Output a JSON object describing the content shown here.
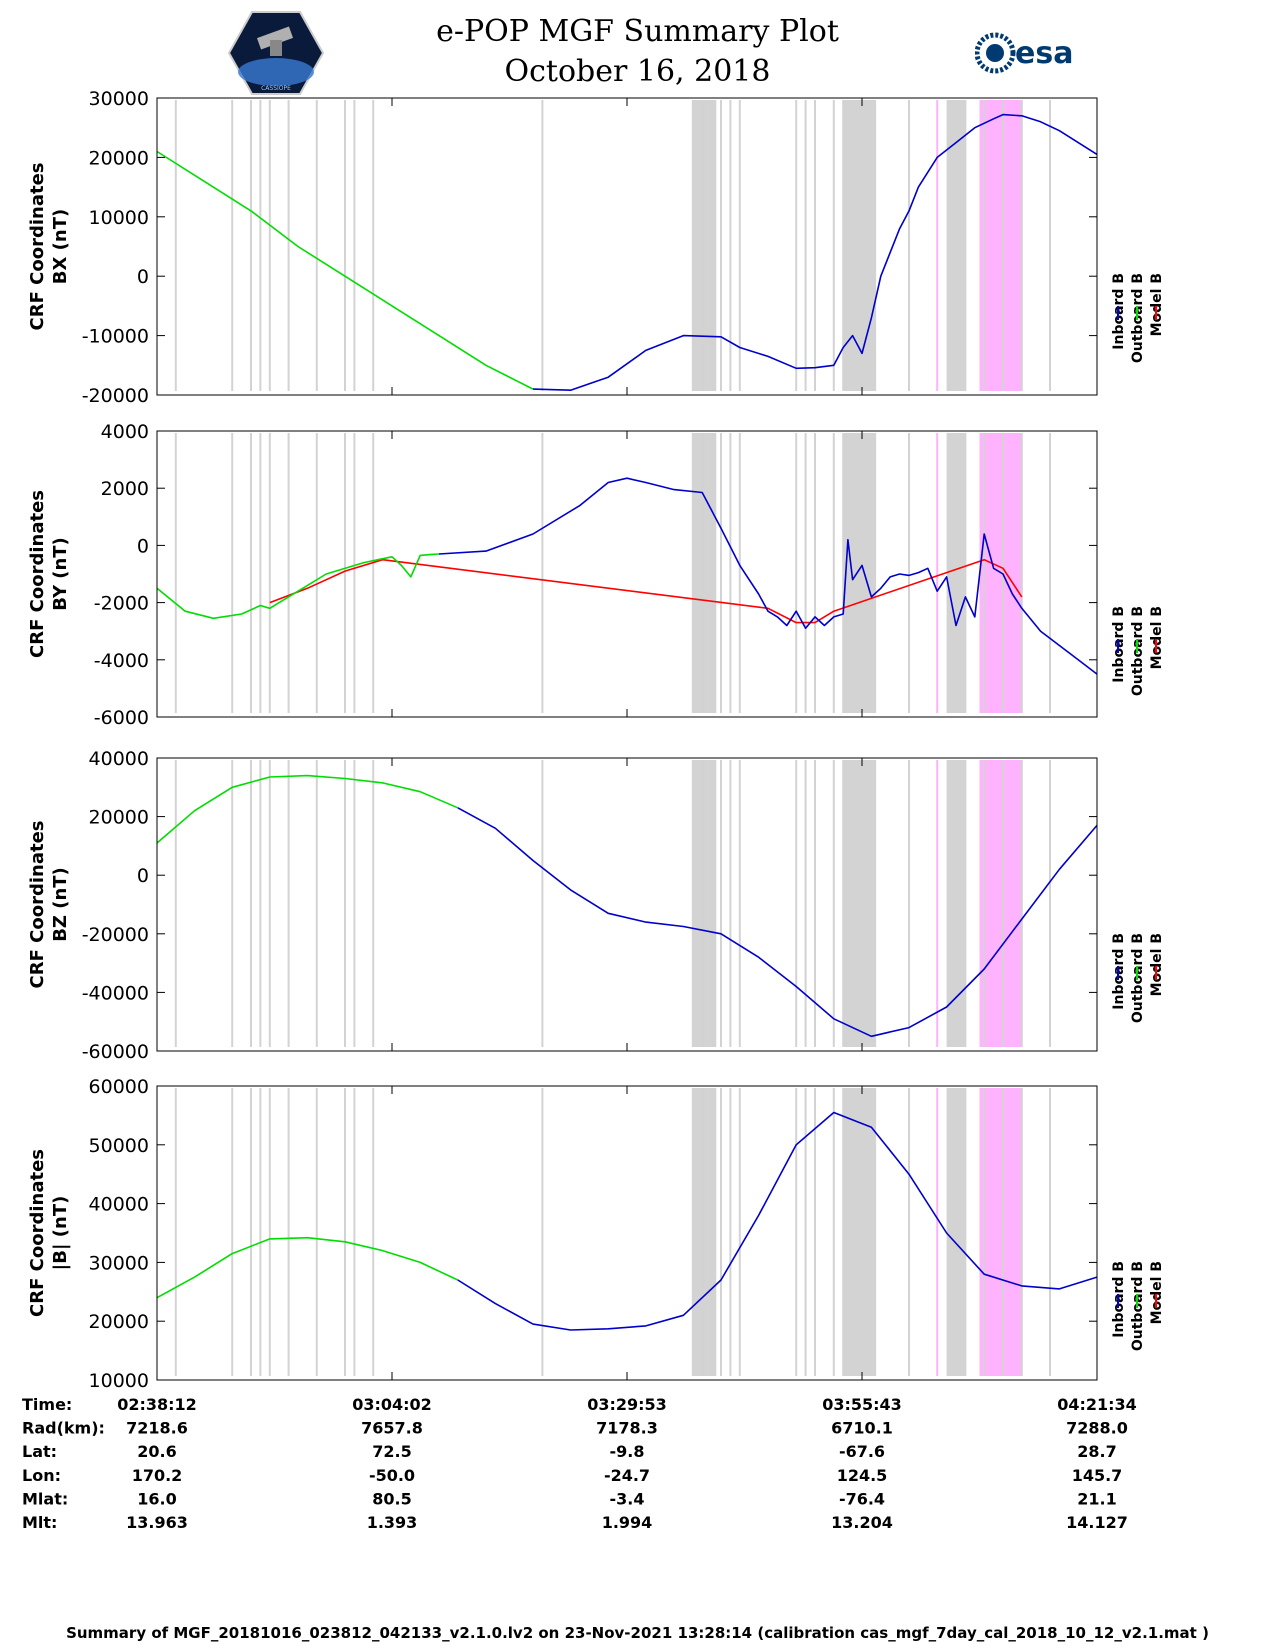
{
  "page": {
    "title_line1": "e-POP MGF Summary Plot",
    "title_line2": "October 16, 2018",
    "left_logo_text": "CASSIOPE",
    "right_logo_text": "esa",
    "footer": "Summary of MGF_20181016_023812_042133_v2.1.0.lv2 on 23-Nov-2021 13:28:14 (calibration cas_mgf_7day_cal_2018_10_12_v2.1.mat )"
  },
  "colors": {
    "inboard": "#0000cc",
    "outboard": "#00dd00",
    "model": "#ff0000",
    "gray_band": "#d3d3d3",
    "pink_band": "#ffb3ff"
  },
  "chart_data": {
    "type": "line",
    "x_range": [
      0,
      100
    ],
    "legend": {
      "entries": [
        {
          "name": "Inboard B",
          "color": "#0000cc"
        },
        {
          "name": "Outboard B",
          "color": "#00dd00"
        },
        {
          "name": "Model B",
          "color": "#ff0000"
        }
      ],
      "placement": "right"
    },
    "gray_lines": [
      2,
      8,
      10,
      11,
      12,
      14,
      17,
      20,
      21,
      23,
      41,
      57,
      58,
      59,
      60,
      61,
      62,
      68,
      69,
      70,
      72,
      73,
      75,
      80,
      86,
      88,
      90,
      92,
      95
    ],
    "gray_bands": [
      [
        57,
        59.5
      ],
      [
        73,
        76.5
      ],
      [
        84,
        86
      ]
    ],
    "pink_lines": [
      83
    ],
    "pink_bands": [
      [
        87.5,
        92
      ]
    ],
    "panels": [
      {
        "ylabel_line1": "CRF Coordinates",
        "ylabel_line2": "BX (nT)",
        "ylim": [
          -20000,
          30000
        ],
        "yticks": [
          "30000",
          "20000",
          "10000",
          "0",
          "-10000",
          "-20000"
        ],
        "ytick_values": [
          30000,
          20000,
          10000,
          0,
          -10000,
          -20000
        ],
        "series": [
          {
            "name": "Outboard B",
            "color": "#00dd00",
            "x": [
              0,
              5,
              10,
              15,
              20,
              25,
              30,
              35,
              40
            ],
            "y": [
              21000,
              16000,
              11000,
              5000,
              0,
              -5000,
              -10000,
              -15000,
              -19000
            ]
          },
          {
            "name": "Inboard B",
            "color": "#0000cc",
            "x": [
              40,
              44,
              48,
              52,
              56,
              60,
              62,
              65,
              68,
              70,
              72,
              73,
              74,
              75,
              76,
              77,
              78,
              79,
              80,
              81,
              83,
              85,
              87,
              89,
              90,
              92,
              94,
              96,
              98,
              100
            ],
            "y": [
              -19000,
              -19200,
              -17000,
              -12500,
              -10000,
              -10200,
              -12000,
              -13500,
              -15500,
              -15400,
              -15000,
              -12000,
              -10000,
              -13000,
              -7000,
              0,
              4000,
              8000,
              11000,
              15000,
              20000,
              22500,
              25000,
              26500,
              27200,
              27000,
              26000,
              24500,
              22500,
              20500
            ]
          }
        ]
      },
      {
        "ylabel_line1": "CRF Coordinates",
        "ylabel_line2": "BY (nT)",
        "ylim": [
          -6000,
          4000
        ],
        "yticks": [
          "4000",
          "2000",
          "0",
          "-2000",
          "-4000",
          "-6000"
        ],
        "ytick_values": [
          4000,
          2000,
          0,
          -2000,
          -4000,
          -6000
        ],
        "series": [
          {
            "name": "Model B",
            "color": "#ff0000",
            "x": [
              12,
              16,
              20,
              24,
              65,
              68,
              70,
              72,
              88,
              90,
              92
            ],
            "y": [
              -2000,
              -1500,
              -900,
              -500,
              -2200,
              -2700,
              -2700,
              -2300,
              -500,
              -800,
              -1800
            ]
          },
          {
            "name": "Outboard B",
            "color": "#00dd00",
            "x": [
              0,
              3,
              6,
              9,
              11,
              12,
              13,
              15,
              18,
              22,
              25,
              26,
              27,
              28,
              29,
              30
            ],
            "y": [
              -1500,
              -2300,
              -2550,
              -2400,
              -2100,
              -2200,
              -2000,
              -1600,
              -1000,
              -600,
              -400,
              -700,
              -1100,
              -350,
              -320,
              -300
            ]
          },
          {
            "name": "Inboard B",
            "color": "#0000cc",
            "x": [
              30,
              35,
              40,
              45,
              48,
              50,
              52,
              55,
              58,
              60,
              62,
              64,
              65,
              66,
              67,
              68,
              69,
              70,
              71,
              72,
              73,
              73.5,
              74,
              75,
              76,
              77,
              78,
              79,
              80,
              81,
              82,
              83,
              84,
              85,
              86,
              87,
              88,
              89,
              90,
              91,
              92,
              94,
              96,
              98,
              100
            ],
            "y": [
              -300,
              -200,
              400,
              1400,
              2200,
              2350,
              2200,
              1950,
              1850,
              600,
              -700,
              -1700,
              -2300,
              -2500,
              -2800,
              -2300,
              -2900,
              -2500,
              -2800,
              -2500,
              -2400,
              200,
              -1200,
              -700,
              -1800,
              -1500,
              -1100,
              -1000,
              -1050,
              -950,
              -800,
              -1600,
              -1100,
              -2800,
              -1800,
              -2500,
              400,
              -800,
              -1000,
              -1700,
              -2200,
              -3000,
              -3500,
              -4000,
              -4500
            ]
          }
        ]
      },
      {
        "ylabel_line1": "CRF Coordinates",
        "ylabel_line2": "BZ (nT)",
        "ylim": [
          -60000,
          40000
        ],
        "yticks": [
          "40000",
          "20000",
          "0",
          "-20000",
          "-40000",
          "-60000"
        ],
        "ytick_values": [
          40000,
          20000,
          0,
          -20000,
          -40000,
          -60000
        ],
        "series": [
          {
            "name": "Outboard B",
            "color": "#00dd00",
            "x": [
              0,
              4,
              8,
              12,
              16,
              20,
              24,
              28,
              32
            ],
            "y": [
              11000,
              22000,
              30000,
              33500,
              34000,
              33000,
              31500,
              28500,
              23000
            ]
          },
          {
            "name": "Inboard B",
            "color": "#0000cc",
            "x": [
              32,
              36,
              40,
              44,
              48,
              52,
              56,
              60,
              64,
              68,
              72,
              76,
              80,
              84,
              88,
              92,
              96,
              100
            ],
            "y": [
              23000,
              16000,
              5000,
              -5000,
              -13000,
              -16000,
              -17500,
              -20000,
              -28000,
              -38000,
              -49000,
              -55000,
              -52000,
              -45000,
              -32000,
              -15000,
              2000,
              17000
            ]
          }
        ]
      },
      {
        "ylabel_line1": "CRF Coordinates",
        "ylabel_line2": "|B| (nT)",
        "ylim": [
          10000,
          60000
        ],
        "yticks": [
          "60000",
          "50000",
          "40000",
          "30000",
          "20000",
          "10000"
        ],
        "ytick_values": [
          60000,
          50000,
          40000,
          30000,
          20000,
          10000
        ],
        "series": [
          {
            "name": "Outboard B",
            "color": "#00dd00",
            "x": [
              0,
              4,
              8,
              12,
              16,
              20,
              24,
              28,
              32
            ],
            "y": [
              24000,
              27500,
              31500,
              34000,
              34200,
              33500,
              32000,
              30000,
              27000
            ]
          },
          {
            "name": "Inboard B",
            "color": "#0000cc",
            "x": [
              32,
              36,
              40,
              44,
              48,
              52,
              56,
              60,
              64,
              68,
              72,
              76,
              80,
              84,
              88,
              92,
              96,
              100
            ],
            "y": [
              27000,
              23000,
              19500,
              18500,
              18700,
              19200,
              21000,
              27000,
              38000,
              50000,
              55500,
              53000,
              45000,
              35000,
              28000,
              26000,
              25500,
              27500
            ]
          }
        ]
      }
    ],
    "x_ticks": [
      {
        "x": 0,
        "time": "02:38:12",
        "rad": "7218.6",
        "lat": "20.6",
        "lon": "170.2",
        "mlat": "16.0",
        "mlt": "13.963"
      },
      {
        "x": 25,
        "time": "03:04:02",
        "rad": "7657.8",
        "lat": "72.5",
        "lon": "-50.0",
        "mlat": "80.5",
        "mlt": "1.393"
      },
      {
        "x": 50,
        "time": "03:29:53",
        "rad": "7178.3",
        "lat": "-9.8",
        "lon": "-24.7",
        "mlat": "-3.4",
        "mlt": "1.994"
      },
      {
        "x": 75,
        "time": "03:55:43",
        "rad": "6710.1",
        "lat": "-67.6",
        "lon": "124.5",
        "mlat": "-76.4",
        "mlt": "13.204"
      },
      {
        "x": 100,
        "time": "04:21:34",
        "rad": "7288.0",
        "lat": "28.7",
        "lon": "145.7",
        "mlat": "21.1",
        "mlt": "14.127"
      }
    ],
    "row_labels": {
      "time": "Time:",
      "rad": "Rad(km):",
      "lat": "Lat:",
      "lon": "Lon:",
      "mlat": "Mlat:",
      "mlt": "Mlt:"
    }
  }
}
